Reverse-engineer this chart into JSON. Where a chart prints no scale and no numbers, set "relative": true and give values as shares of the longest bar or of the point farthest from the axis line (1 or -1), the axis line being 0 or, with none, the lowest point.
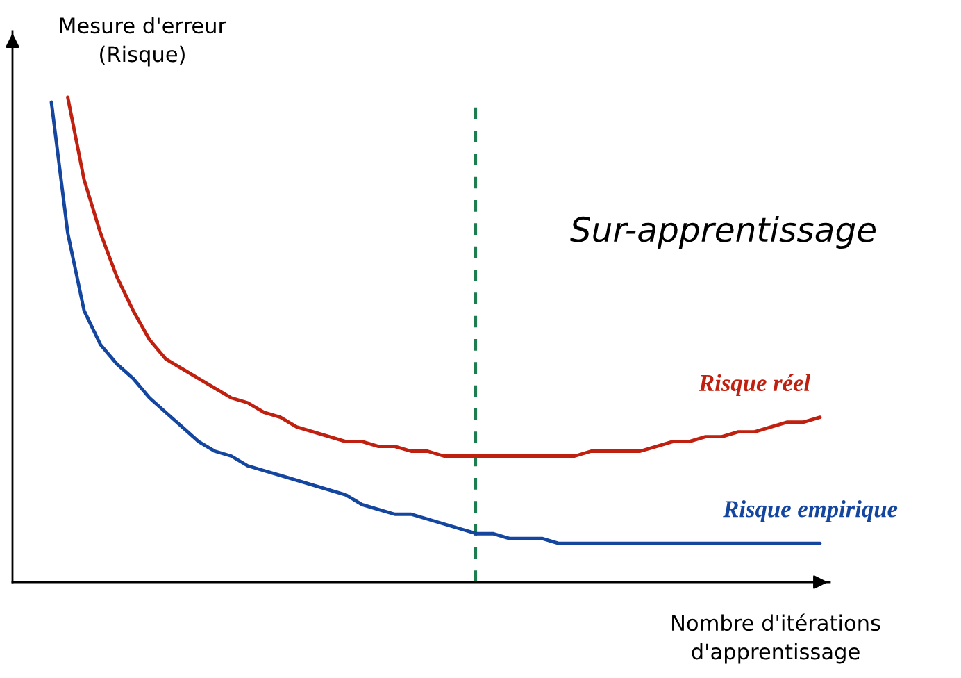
{
  "chart_data": {
    "type": "line",
    "relative": true,
    "ylabel": "Mesure d'erreur\n(Risque)",
    "xlabel": "Nombre d'itérations\nd'apprentissage",
    "categories": [
      null,
      null,
      null,
      null,
      null,
      null,
      null,
      null,
      null,
      null,
      null,
      null,
      null,
      null,
      null,
      null,
      null,
      null,
      null,
      null,
      null,
      null,
      null,
      null,
      null,
      null,
      null,
      null,
      null,
      null,
      null,
      null,
      null,
      null,
      null,
      null,
      null,
      null,
      null,
      null,
      null,
      null,
      null,
      null,
      null,
      null,
      null,
      null
    ],
    "series": [
      {
        "name": "Risque réel",
        "color": "#c0200f",
        "values": [
          null,
          1.0,
          0.83,
          0.72,
          0.63,
          0.56,
          0.5,
          0.46,
          0.44,
          0.42,
          0.4,
          0.38,
          0.37,
          0.35,
          0.34,
          0.32,
          0.31,
          0.3,
          0.29,
          0.29,
          0.28,
          0.28,
          0.27,
          0.27,
          0.26,
          0.26,
          0.26,
          0.26,
          0.26,
          0.26,
          0.26,
          0.26,
          0.26,
          0.27,
          0.27,
          0.27,
          0.27,
          0.28,
          0.29,
          0.29,
          0.3,
          0.3,
          0.31,
          0.31,
          0.32,
          0.33,
          0.33,
          0.34
        ]
      },
      {
        "name": "Risque empirique",
        "color": "#1446a0",
        "values": [
          0.99,
          0.72,
          0.56,
          0.49,
          0.45,
          0.42,
          0.38,
          0.35,
          0.32,
          0.29,
          0.27,
          0.26,
          0.24,
          0.23,
          0.22,
          0.21,
          0.2,
          0.19,
          0.18,
          0.16,
          0.15,
          0.14,
          0.14,
          0.13,
          0.12,
          0.11,
          0.1,
          0.1,
          0.09,
          0.09,
          0.09,
          0.08,
          0.08,
          0.08,
          0.08,
          0.08,
          0.08,
          0.08,
          0.08,
          0.08,
          0.08,
          0.08,
          0.08,
          0.08,
          0.08,
          0.08,
          0.08,
          0.08
        ]
      }
    ],
    "annotations": [
      "Sur-apprentissage"
    ],
    "legend": false
  }
}
